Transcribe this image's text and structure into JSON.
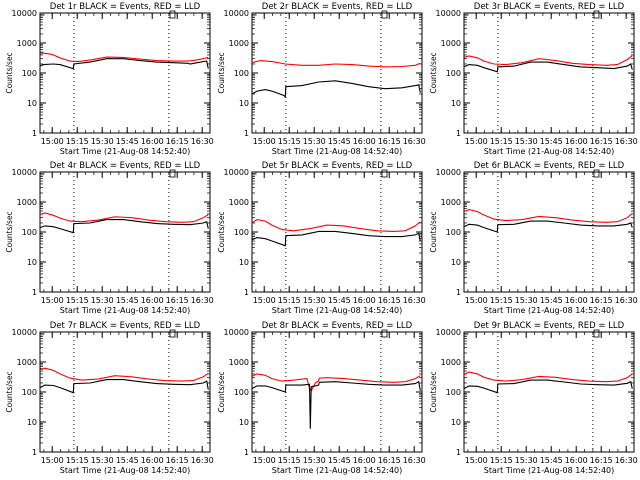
{
  "chart_data": [
    {
      "type": "line",
      "title": "Det 1r BLACK = Events, RED = LLD",
      "xlabel": "Start Time (21-Aug-08 14:52:40)",
      "ylabel": "Counts/sec",
      "yscale": "log",
      "ylim": [
        1,
        10000
      ],
      "xlim_minutes_after_start": [
        0,
        102
      ],
      "x_tick_labels": [
        "15:00",
        "15:15",
        "15:30",
        "15:45",
        "16:00",
        "16:15",
        "16:30"
      ],
      "y_tick_labels": [
        "1",
        "10",
        "100",
        "1000",
        "10000"
      ],
      "vertical_dotted_lines": [
        "15:13",
        "16:10"
      ],
      "series": [
        {
          "color": "#ff0000",
          "x": [
            0,
            2,
            7,
            12,
            18,
            23,
            30,
            40,
            50,
            60,
            70,
            80,
            88,
            92,
            98,
            101
          ],
          "y": [
            450,
            460,
            420,
            320,
            250,
            240,
            270,
            340,
            330,
            290,
            260,
            250,
            250,
            260,
            300,
            330
          ]
        },
        {
          "color": "#000000",
          "x": [
            0,
            2,
            8,
            12,
            20,
            20.3,
            30,
            40,
            50,
            60,
            70,
            80,
            89,
            90,
            98,
            100,
            101
          ],
          "y": [
            170,
            190,
            200,
            190,
            140,
            200,
            230,
            300,
            300,
            260,
            230,
            220,
            210,
            200,
            240,
            250,
            140
          ]
        }
      ]
    },
    {
      "type": "line",
      "title": "Det 2r BLACK = Events, RED = LLD",
      "xlabel": "Start Time (21-Aug-08 14:52:40)",
      "ylabel": "Counts/sec",
      "yscale": "log",
      "ylim": [
        1,
        10000
      ],
      "xlim_minutes_after_start": [
        0,
        102
      ],
      "x_tick_labels": [
        "15:00",
        "15:15",
        "15:30",
        "15:45",
        "16:00",
        "16:15",
        "16:30"
      ],
      "y_tick_labels": [
        "1",
        "10",
        "100",
        "1000",
        "10000"
      ],
      "vertical_dotted_lines": [
        "15:13",
        "16:10"
      ],
      "series": [
        {
          "color": "#ff0000",
          "x": [
            0,
            5,
            12,
            20,
            30,
            40,
            50,
            60,
            70,
            80,
            90,
            98,
            101
          ],
          "y": [
            220,
            260,
            240,
            200,
            180,
            180,
            200,
            190,
            170,
            160,
            165,
            180,
            210
          ]
        },
        {
          "color": "#000000",
          "x": [
            0,
            3,
            8,
            12,
            19,
            20,
            20.3,
            30,
            40,
            50,
            60,
            70,
            80,
            90,
            98,
            100,
            101
          ],
          "y": [
            20,
            25,
            28,
            25,
            18,
            16,
            35,
            38,
            50,
            55,
            45,
            35,
            30,
            32,
            38,
            40,
            22
          ]
        }
      ]
    },
    {
      "type": "line",
      "title": "Det 3r BLACK = Events, RED = LLD",
      "xlabel": "Start Time (21-Aug-08 14:52:40)",
      "ylabel": "Counts/sec",
      "yscale": "log",
      "ylim": [
        1,
        10000
      ],
      "xlim_minutes_after_start": [
        0,
        102
      ],
      "x_tick_labels": [
        "15:00",
        "15:15",
        "15:30",
        "15:45",
        "16:00",
        "16:15",
        "16:30"
      ],
      "y_tick_labels": [
        "1",
        "10",
        "100",
        "1000",
        "10000"
      ],
      "vertical_dotted_lines": [
        "15:13",
        "16:10"
      ],
      "series": [
        {
          "color": "#ff0000",
          "x": [
            0,
            3,
            8,
            12,
            18,
            25,
            35,
            45,
            55,
            65,
            75,
            85,
            92,
            98,
            101
          ],
          "y": [
            330,
            370,
            320,
            250,
            200,
            190,
            220,
            300,
            260,
            210,
            190,
            180,
            190,
            280,
            380
          ]
        },
        {
          "color": "#000000",
          "x": [
            0,
            3,
            8,
            12,
            20,
            20.3,
            30,
            40,
            50,
            60,
            70,
            80,
            90,
            98,
            100,
            101
          ],
          "y": [
            160,
            190,
            180,
            150,
            110,
            160,
            170,
            230,
            230,
            190,
            160,
            150,
            140,
            170,
            200,
            130
          ]
        }
      ]
    },
    {
      "type": "line",
      "title": "Det 4r BLACK = Events, RED = LLD",
      "xlabel": "Start Time (21-Aug-08 14:52:40)",
      "ylabel": "Counts/sec",
      "yscale": "log",
      "ylim": [
        1,
        10000
      ],
      "xlim_minutes_after_start": [
        0,
        102
      ],
      "x_tick_labels": [
        "15:00",
        "15:15",
        "15:30",
        "15:45",
        "16:00",
        "16:15",
        "16:30"
      ],
      "y_tick_labels": [
        "1",
        "10",
        "100",
        "1000",
        "10000"
      ],
      "vertical_dotted_lines": [
        "15:13",
        "16:10"
      ],
      "series": [
        {
          "color": "#ff0000",
          "x": [
            0,
            3,
            8,
            12,
            18,
            25,
            35,
            45,
            55,
            65,
            75,
            85,
            92,
            98,
            101
          ],
          "y": [
            380,
            430,
            360,
            290,
            230,
            220,
            250,
            320,
            300,
            250,
            220,
            210,
            220,
            300,
            380
          ]
        },
        {
          "color": "#000000",
          "x": [
            0,
            3,
            8,
            12,
            20,
            20.3,
            30,
            40,
            50,
            60,
            70,
            80,
            90,
            98,
            100,
            101
          ],
          "y": [
            140,
            160,
            150,
            130,
            95,
            190,
            200,
            260,
            260,
            220,
            190,
            180,
            175,
            200,
            220,
            130
          ]
        }
      ]
    },
    {
      "type": "line",
      "title": "Det 5r BLACK = Events, RED = LLD",
      "xlabel": "Start Time (21-Aug-08 14:52:40)",
      "ylabel": "Counts/sec",
      "yscale": "log",
      "ylim": [
        1,
        10000
      ],
      "xlim_minutes_after_start": [
        0,
        102
      ],
      "x_tick_labels": [
        "15:00",
        "15:15",
        "15:30",
        "15:45",
        "16:00",
        "16:15",
        "16:30"
      ],
      "y_tick_labels": [
        "1",
        "10",
        "100",
        "1000",
        "10000"
      ],
      "vertical_dotted_lines": [
        "15:13",
        "16:10"
      ],
      "series": [
        {
          "color": "#ff0000",
          "x": [
            0,
            3,
            8,
            12,
            18,
            25,
            35,
            45,
            55,
            65,
            75,
            85,
            92,
            98,
            101
          ],
          "y": [
            200,
            260,
            230,
            170,
            120,
            110,
            130,
            170,
            160,
            130,
            110,
            105,
            110,
            160,
            220
          ]
        },
        {
          "color": "#000000",
          "x": [
            0,
            3,
            8,
            12,
            20,
            20.3,
            30,
            40,
            50,
            60,
            70,
            80,
            90,
            98,
            100,
            101
          ],
          "y": [
            55,
            65,
            60,
            50,
            35,
            75,
            80,
            105,
            105,
            90,
            75,
            70,
            70,
            80,
            90,
            50
          ]
        }
      ]
    },
    {
      "type": "line",
      "title": "Det 6r BLACK = Events, RED = LLD",
      "xlabel": "Start Time (21-Aug-08 14:52:40)",
      "ylabel": "Counts/sec",
      "yscale": "log",
      "ylim": [
        1,
        10000
      ],
      "xlim_minutes_after_start": [
        0,
        102
      ],
      "x_tick_labels": [
        "15:00",
        "15:15",
        "15:30",
        "15:45",
        "16:00",
        "16:15",
        "16:30"
      ],
      "y_tick_labels": [
        "1",
        "10",
        "100",
        "1000",
        "10000"
      ],
      "vertical_dotted_lines": [
        "15:13",
        "16:10"
      ],
      "series": [
        {
          "color": "#ff0000",
          "x": [
            0,
            3,
            8,
            12,
            18,
            25,
            35,
            45,
            55,
            65,
            75,
            85,
            92,
            98,
            101
          ],
          "y": [
            480,
            560,
            480,
            370,
            270,
            240,
            260,
            330,
            300,
            250,
            220,
            210,
            220,
            300,
            420
          ]
        },
        {
          "color": "#000000",
          "x": [
            0,
            3,
            8,
            12,
            20,
            20.3,
            30,
            40,
            50,
            60,
            70,
            80,
            90,
            98,
            100,
            101
          ],
          "y": [
            150,
            180,
            170,
            140,
            100,
            175,
            180,
            230,
            230,
            200,
            170,
            160,
            160,
            180,
            200,
            140
          ]
        }
      ]
    },
    {
      "type": "line",
      "title": "Det 7r BLACK = Events, RED = LLD",
      "xlabel": "Start Time (21-Aug-08 14:52:40)",
      "ylabel": "Counts/sec",
      "yscale": "log",
      "ylim": [
        1,
        10000
      ],
      "xlim_minutes_after_start": [
        0,
        102
      ],
      "x_tick_labels": [
        "15:00",
        "15:15",
        "15:30",
        "15:45",
        "16:00",
        "16:15",
        "16:30"
      ],
      "y_tick_labels": [
        "1",
        "10",
        "100",
        "1000",
        "10000"
      ],
      "vertical_dotted_lines": [
        "15:13",
        "16:10"
      ],
      "series": [
        {
          "color": "#ff0000",
          "x": [
            0,
            3,
            8,
            12,
            18,
            25,
            35,
            45,
            55,
            65,
            75,
            85,
            92,
            98,
            101
          ],
          "y": [
            550,
            620,
            530,
            400,
            290,
            250,
            270,
            350,
            320,
            270,
            240,
            230,
            240,
            320,
            420
          ]
        },
        {
          "color": "#000000",
          "x": [
            0,
            3,
            8,
            12,
            20,
            20.3,
            30,
            40,
            50,
            60,
            70,
            80,
            90,
            98,
            100,
            101
          ],
          "y": [
            140,
            170,
            165,
            140,
            95,
            190,
            200,
            260,
            260,
            220,
            190,
            180,
            175,
            200,
            230,
            120
          ]
        }
      ]
    },
    {
      "type": "line",
      "title": "Det 8r BLACK = Events, RED = LLD",
      "xlabel": "Start Time (21-Aug-08 14:52:40)",
      "ylabel": "Counts/sec",
      "yscale": "log",
      "ylim": [
        1,
        10000
      ],
      "xlim_minutes_after_start": [
        0,
        102
      ],
      "x_tick_labels": [
        "15:00",
        "15:15",
        "15:30",
        "15:45",
        "16:00",
        "16:15",
        "16:30"
      ],
      "y_tick_labels": [
        "1",
        "10",
        "100",
        "1000",
        "10000"
      ],
      "vertical_dotted_lines": [
        "15:13",
        "16:10"
      ],
      "series": [
        {
          "color": "#ff0000",
          "x": [
            0,
            3,
            8,
            12,
            18,
            25,
            33,
            34.5,
            35.5,
            38,
            40,
            40.3,
            45,
            55,
            65,
            75,
            85,
            92,
            98,
            101
          ],
          "y": [
            330,
            400,
            360,
            280,
            230,
            250,
            280,
            130,
            110,
            200,
            240,
            290,
            300,
            280,
            250,
            220,
            210,
            220,
            280,
            350
          ]
        },
        {
          "color": "#000000",
          "x": [
            0,
            3,
            8,
            12,
            20,
            20.3,
            30,
            34.5,
            35,
            35.5,
            38,
            40,
            40.3,
            50,
            60,
            70,
            80,
            90,
            98,
            100,
            101
          ],
          "y": [
            130,
            160,
            160,
            140,
            100,
            170,
            170,
            180,
            6,
            150,
            160,
            170,
            210,
            220,
            200,
            180,
            170,
            170,
            190,
            220,
            110
          ]
        }
      ]
    },
    {
      "type": "line",
      "title": "Det 9r BLACK = Events, RED = LLD",
      "xlabel": "Start Time (21-Aug-08 14:52:40)",
      "ylabel": "Counts/sec",
      "yscale": "log",
      "ylim": [
        1,
        10000
      ],
      "xlim_minutes_after_start": [
        0,
        102
      ],
      "x_tick_labels": [
        "15:00",
        "15:15",
        "15:30",
        "15:45",
        "16:00",
        "16:15",
        "16:30"
      ],
      "y_tick_labels": [
        "1",
        "10",
        "100",
        "1000",
        "10000"
      ],
      "vertical_dotted_lines": [
        "15:13",
        "16:10"
      ],
      "series": [
        {
          "color": "#ff0000",
          "x": [
            0,
            3,
            8,
            12,
            18,
            25,
            35,
            45,
            55,
            65,
            75,
            85,
            92,
            98,
            101
          ],
          "y": [
            380,
            460,
            400,
            310,
            250,
            230,
            260,
            330,
            310,
            260,
            230,
            220,
            230,
            300,
            400
          ]
        },
        {
          "color": "#000000",
          "x": [
            0,
            3,
            8,
            12,
            20,
            20.3,
            30,
            40,
            50,
            60,
            70,
            80,
            90,
            98,
            100,
            101
          ],
          "y": [
            130,
            160,
            155,
            135,
            95,
            185,
            190,
            250,
            250,
            215,
            185,
            175,
            170,
            195,
            220,
            130
          ]
        }
      ]
    }
  ]
}
